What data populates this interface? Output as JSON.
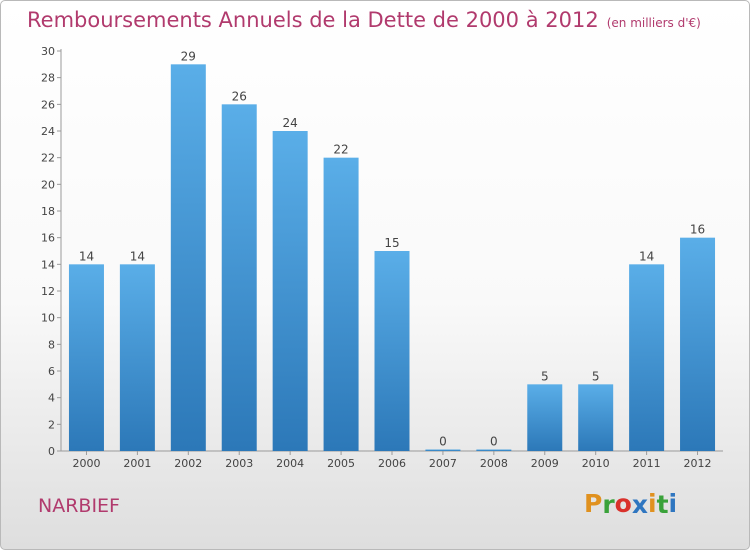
{
  "chart_data": {
    "type": "bar",
    "title": "Remboursements Annuels de la Dette de 2000 à 2012",
    "unit": "(en milliers d'€)",
    "categories": [
      "2000",
      "2001",
      "2002",
      "2003",
      "2004",
      "2005",
      "2006",
      "2007",
      "2008",
      "2009",
      "2010",
      "2011",
      "2012"
    ],
    "values": [
      14,
      14,
      29,
      26,
      24,
      22,
      15,
      0,
      0,
      5,
      5,
      14,
      16
    ],
    "ylim": [
      0,
      30
    ],
    "yticks": [
      0,
      2,
      4,
      6,
      8,
      10,
      12,
      14,
      16,
      18,
      20,
      22,
      24,
      26,
      28,
      30
    ],
    "grid": false,
    "bar_color": "#3a8fd3",
    "text_color": "#b13a6d"
  },
  "place_name": "NARBIEF",
  "logo": {
    "letters": [
      "P",
      "r",
      "o",
      "x",
      "i",
      "t",
      "i"
    ],
    "colors": [
      "#e0911f",
      "#3aa23a",
      "#d9312b",
      "#2f76c0",
      "#e0911f",
      "#3aa23a",
      "#2f76c0"
    ]
  }
}
